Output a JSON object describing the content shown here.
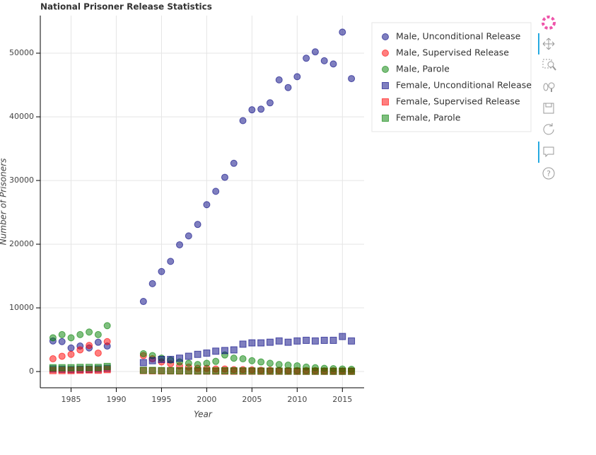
{
  "chart_data": {
    "type": "scatter",
    "title": "National Prisoner Release Statistics",
    "x_label": "Year",
    "y_label": "Number of Prisoners",
    "x": [
      1983,
      1984,
      1985,
      1986,
      1987,
      1988,
      1989,
      1993,
      1994,
      1995,
      1996,
      1997,
      1998,
      1999,
      2000,
      2001,
      2002,
      2003,
      2004,
      2005,
      2006,
      2007,
      2008,
      2009,
      2010,
      2011,
      2012,
      2013,
      2014,
      2015,
      2016
    ],
    "series": [
      {
        "name": "Male, Unconditional Release",
        "color": "#000080",
        "marker": "circle",
        "values": [
          4800,
          4700,
          3700,
          4000,
          3700,
          4600,
          4000,
          11000,
          13800,
          15700,
          17300,
          19900,
          21300,
          23100,
          26200,
          28300,
          30500,
          32700,
          39400,
          41100,
          41200,
          42200,
          45800,
          44600,
          46300,
          49200,
          50200,
          48800,
          48300,
          53300,
          46000
        ]
      },
      {
        "name": "Male, Supervised Release",
        "color": "#ff0000",
        "marker": "circle",
        "values": [
          2000,
          2400,
          2700,
          3400,
          4100,
          2900,
          4700,
          2500,
          2000,
          1500,
          1200,
          900,
          700,
          500,
          500,
          400,
          400,
          300,
          300,
          250,
          200,
          200,
          200,
          150,
          150,
          150,
          150,
          100,
          100,
          100,
          100
        ]
      },
      {
        "name": "Male, Parole",
        "color": "#008000",
        "marker": "circle",
        "values": [
          5300,
          5800,
          5300,
          5800,
          6200,
          5800,
          7200,
          2800,
          2500,
          2100,
          1800,
          1500,
          1300,
          1100,
          1300,
          1600,
          2600,
          2100,
          2000,
          1700,
          1500,
          1300,
          1100,
          1000,
          900,
          700,
          600,
          500,
          450,
          400,
          350
        ]
      },
      {
        "name": "Female, Unconditional Release",
        "color": "#000080",
        "marker": "square",
        "values": [
          400,
          350,
          300,
          350,
          350,
          400,
          500,
          1400,
          1700,
          1900,
          1900,
          2100,
          2400,
          2700,
          2900,
          3200,
          3300,
          3400,
          4300,
          4500,
          4500,
          4600,
          4800,
          4600,
          4800,
          4900,
          4800,
          4900,
          4900,
          5500,
          4800
        ]
      },
      {
        "name": "Female, Supervised Release",
        "color": "#ff0000",
        "marker": "square",
        "values": [
          150,
          150,
          150,
          200,
          250,
          200,
          300,
          150,
          120,
          100,
          100,
          80,
          80,
          70,
          70,
          60,
          60,
          50,
          50,
          50,
          40,
          40,
          40,
          40,
          30,
          30,
          30,
          30,
          30,
          30,
          30
        ]
      },
      {
        "name": "Female, Parole",
        "color": "#008000",
        "marker": "square",
        "values": [
          600,
          600,
          600,
          650,
          650,
          650,
          800,
          200,
          180,
          150,
          130,
          120,
          110,
          100,
          100,
          100,
          120,
          110,
          100,
          90,
          80,
          70,
          70,
          60,
          60,
          50,
          50,
          50,
          40,
          40,
          40
        ]
      }
    ],
    "xlim": [
      1981.6,
      2017.4
    ],
    "ylim": [
      -2550,
      55900
    ],
    "xticks": [
      1985,
      1990,
      1995,
      2000,
      2005,
      2010,
      2015
    ],
    "yticks": [
      0,
      10000,
      20000,
      30000,
      40000,
      50000
    ],
    "grid": true,
    "legend": "outside-right"
  }
}
